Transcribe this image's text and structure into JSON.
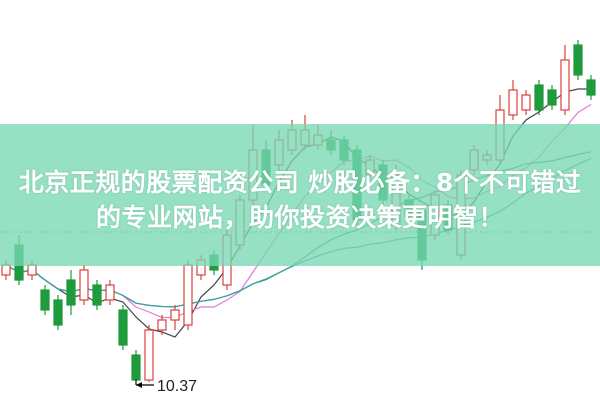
{
  "headline": {
    "line1": "北京正规的股票配资公司 炒股必备：8个不可错过",
    "line2": "的专业网站，助你投资决策更明智！"
  },
  "chart_data": {
    "type": "candlestick",
    "ylim": [
      10.21,
      14.22
    ],
    "grid": false,
    "reference_line": 11.9,
    "low_annotation": {
      "label": "10.37",
      "value": 10.37,
      "candle": 11
    },
    "colors": {
      "up": "#d9413c",
      "down": "#1f9a3c",
      "ma": [
        "#444444",
        "#e07ad8",
        "#3c9a5a",
        "#3aa0a8"
      ],
      "banner": "#8fe0c0"
    },
    "moving_averages": [
      5,
      10,
      20,
      30
    ],
    "ohlc": [
      [
        11.47,
        11.62,
        11.42,
        11.57
      ],
      [
        11.77,
        11.87,
        11.37,
        11.42
      ],
      [
        11.47,
        11.62,
        11.42,
        11.57
      ],
      [
        11.32,
        11.37,
        11.07,
        11.12
      ],
      [
        11.22,
        11.27,
        10.92,
        10.97
      ],
      [
        11.42,
        11.52,
        11.07,
        11.17
      ],
      [
        11.22,
        11.57,
        11.17,
        11.52
      ],
      [
        11.37,
        11.42,
        11.12,
        11.17
      ],
      [
        11.22,
        11.42,
        11.17,
        11.37
      ],
      [
        11.12,
        11.17,
        10.72,
        10.77
      ],
      [
        10.67,
        10.72,
        10.37,
        10.42
      ],
      [
        10.42,
        10.97,
        10.4,
        10.92
      ],
      [
        10.92,
        11.07,
        10.87,
        11.02
      ],
      [
        11.02,
        11.17,
        10.92,
        11.12
      ],
      [
        10.97,
        11.62,
        10.92,
        11.57
      ],
      [
        11.47,
        11.67,
        11.42,
        11.62
      ],
      [
        11.67,
        11.72,
        11.47,
        11.52
      ],
      [
        11.37,
        11.92,
        11.32,
        11.87
      ],
      [
        11.77,
        12.27,
        11.72,
        12.22
      ],
      [
        12.22,
        12.97,
        12.17,
        12.72
      ],
      [
        12.72,
        12.82,
        12.32,
        12.37
      ],
      [
        12.57,
        12.92,
        12.52,
        12.82
      ],
      [
        12.72,
        13.02,
        12.67,
        12.92
      ],
      [
        12.77,
        13.07,
        12.72,
        12.92
      ],
      [
        12.77,
        12.97,
        12.72,
        12.87
      ],
      [
        12.82,
        12.92,
        12.67,
        12.72
      ],
      [
        12.82,
        12.87,
        12.57,
        12.62
      ],
      [
        12.72,
        12.77,
        11.97,
        12.02
      ],
      [
        12.47,
        12.67,
        12.42,
        12.62
      ],
      [
        12.57,
        12.62,
        12.17,
        12.22
      ],
      [
        11.97,
        12.57,
        11.92,
        12.47
      ],
      [
        12.22,
        12.27,
        12.02,
        12.07
      ],
      [
        12.12,
        12.17,
        11.52,
        11.62
      ],
      [
        11.87,
        12.32,
        11.82,
        12.27
      ],
      [
        12.17,
        12.22,
        11.87,
        11.92
      ],
      [
        11.67,
        12.52,
        11.62,
        12.47
      ],
      [
        12.52,
        12.77,
        12.47,
        12.72
      ],
      [
        12.62,
        12.72,
        12.57,
        12.67
      ],
      [
        12.62,
        13.27,
        12.57,
        13.12
      ],
      [
        13.07,
        13.42,
        13.02,
        13.32
      ],
      [
        13.12,
        13.32,
        13.07,
        13.27
      ],
      [
        13.37,
        13.42,
        13.07,
        13.12
      ],
      [
        13.32,
        13.37,
        13.12,
        13.17
      ],
      [
        13.12,
        13.77,
        13.07,
        13.62
      ],
      [
        13.77,
        13.82,
        13.42,
        13.47
      ],
      [
        13.42,
        13.47,
        13.22,
        13.27
      ]
    ]
  }
}
